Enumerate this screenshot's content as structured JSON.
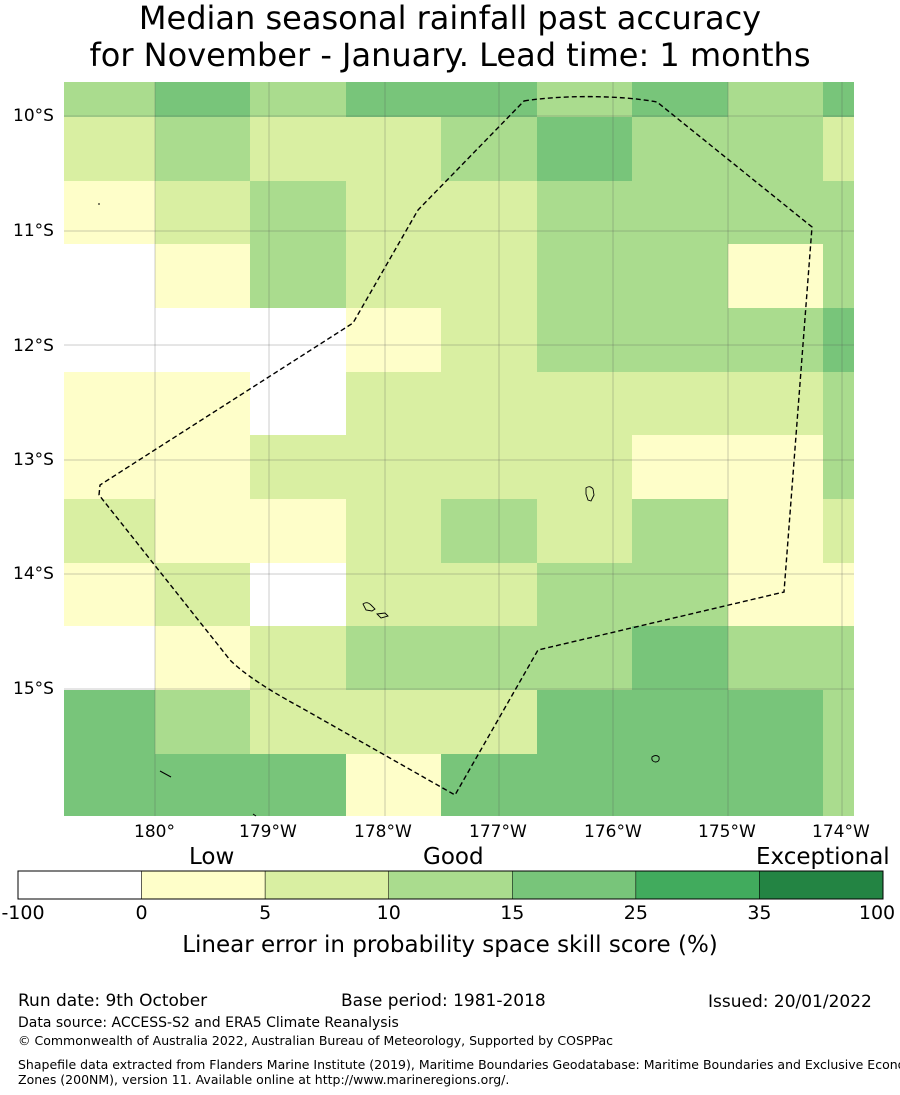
{
  "title": {
    "line1": "Median seasonal rainfall past accuracy",
    "line2": "for November - January. Lead time: 1 months"
  },
  "map": {
    "lat_ticks": [
      "10°S",
      "11°S",
      "12°S",
      "13°S",
      "14°S",
      "15°S"
    ],
    "lon_ticks": [
      "180°",
      "179°W",
      "178°W",
      "177°W",
      "176°W",
      "175°W",
      "174°W"
    ],
    "grid_rows_top_to_bottom": [
      [
        3,
        4,
        3,
        4,
        4,
        3,
        4,
        3,
        4
      ],
      [
        2,
        3,
        2,
        2,
        3,
        4,
        3,
        3,
        2
      ],
      [
        1,
        2,
        3,
        2,
        2,
        3,
        3,
        3,
        3
      ],
      [
        0,
        1,
        3,
        2,
        2,
        3,
        3,
        1,
        3
      ],
      [
        0,
        0,
        0,
        1,
        2,
        3,
        3,
        3,
        4
      ],
      [
        1,
        1,
        0,
        2,
        2,
        2,
        2,
        2,
        3
      ],
      [
        1,
        1,
        2,
        2,
        2,
        2,
        1,
        1,
        3
      ],
      [
        2,
        1,
        1,
        2,
        3,
        2,
        3,
        1,
        2
      ],
      [
        1,
        2,
        0,
        2,
        2,
        3,
        3,
        1,
        1
      ],
      [
        0,
        1,
        2,
        3,
        3,
        3,
        4,
        3,
        3
      ],
      [
        4,
        3,
        2,
        2,
        2,
        4,
        4,
        4,
        3
      ],
      [
        4,
        4,
        4,
        1,
        4,
        4,
        4,
        4,
        3
      ]
    ]
  },
  "colorbar": {
    "category_labels": [
      "Low",
      "Good",
      "Exceptional"
    ],
    "tick_labels": [
      "-100",
      "0",
      "5",
      "10",
      "15",
      "25",
      "35",
      "100"
    ],
    "colors": [
      "#ffffff",
      "#fefec9",
      "#d9efa2",
      "#aadc8e",
      "#78c57a",
      "#41ab5d",
      "#238443"
    ],
    "label": "Linear error in probability space skill score (%)"
  },
  "footer": {
    "run_date": "Run date: 9th October",
    "base_period": "Base period: 1981-2018",
    "issued": "Issued: 20/01/2022",
    "data_source": "Data source: ACCESS-S2 and ERA5 Climate Reanalysis",
    "copyright": "© Commonwealth of Australia 2022, Australian Bureau of Meteorology, Supported by COSPPac",
    "shapefile_line1": "Shapefile data extracted from Flanders Marine Institute (2019), Maritime Boundaries Geodatabase: Maritime Boundaries and Exclusive Economic",
    "shapefile_line2": "Zones (200NM), version 11. Available online at http://www.marineregions.org/."
  }
}
